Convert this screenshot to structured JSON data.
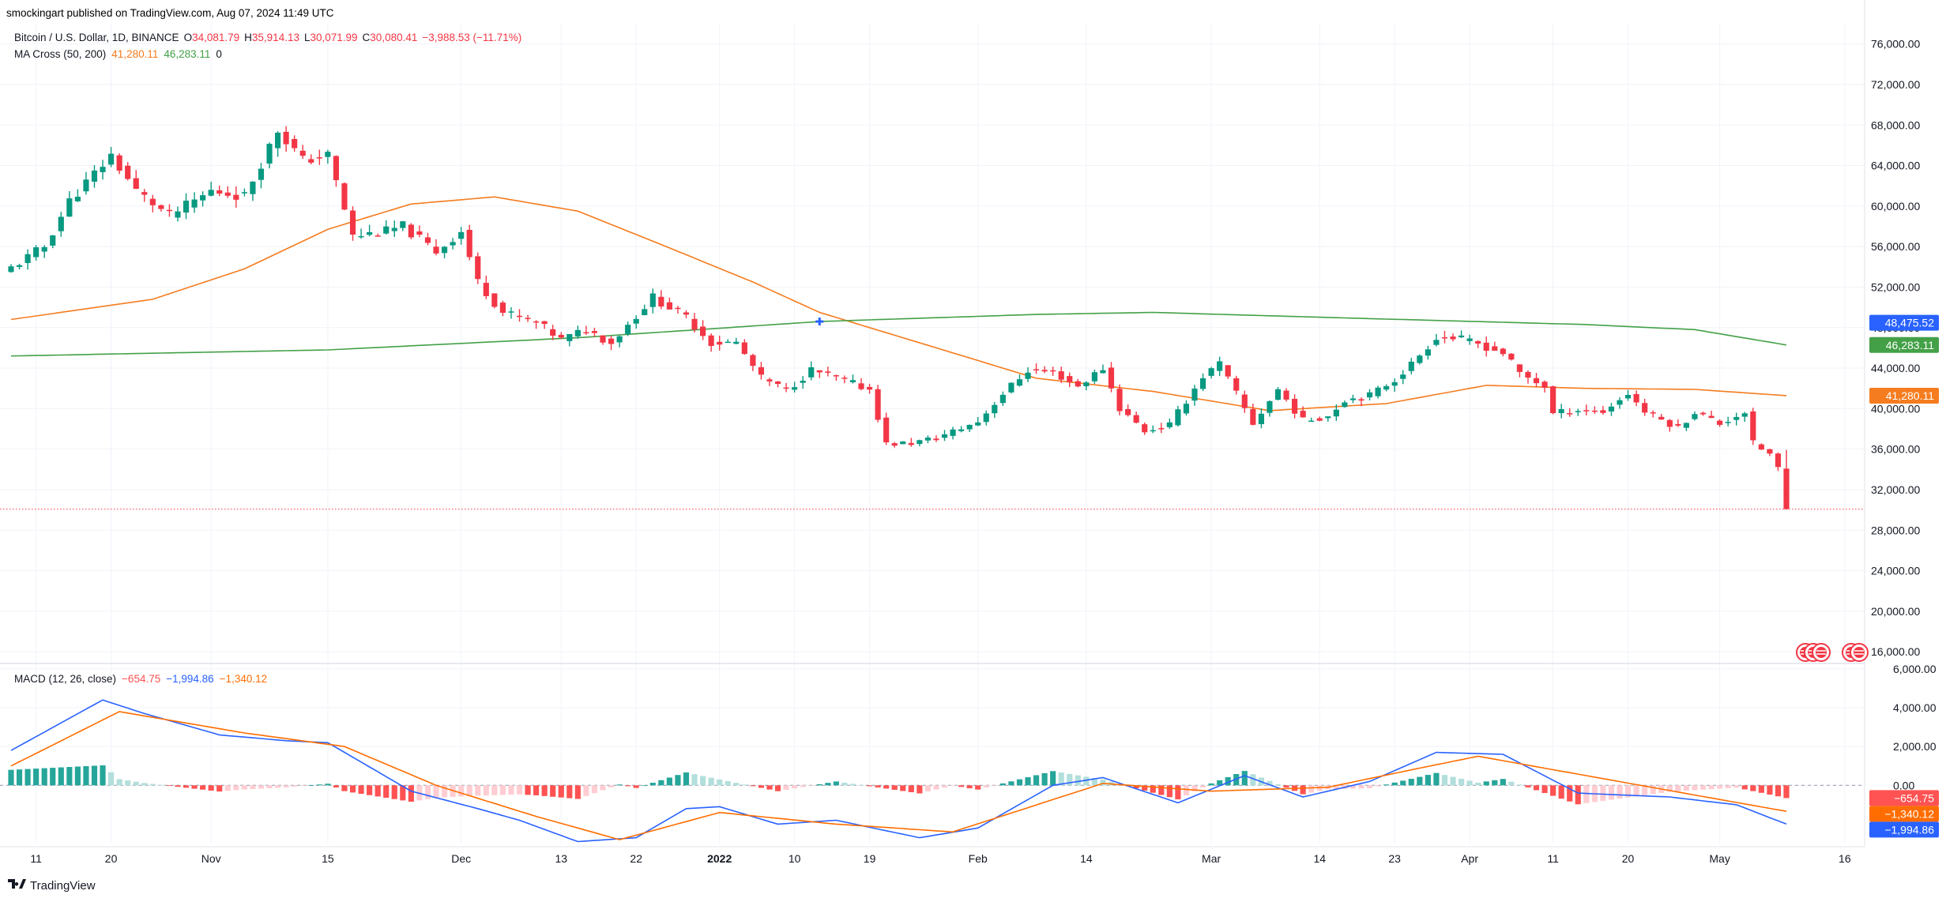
{
  "publisher_line": "smockingart published on TradingView.com, Aug 07, 2024 11:49 UTC",
  "footer_logo_text": "TradingView",
  "colors": {
    "up": "#089981",
    "down": "#f23645",
    "ma_fast": "#f57c1f",
    "ma_slow": "#43a047",
    "macd_line": "#2962ff",
    "signal_line": "#ff6d00",
    "hist_up_strong": "#26a69a",
    "hist_up_weak": "#b2dfdb",
    "hist_down_strong": "#ff5252",
    "hist_down_weak": "#ffcdd2",
    "grid": "#f0f3fa",
    "text": "#131722"
  },
  "legend": {
    "symbol": "Bitcoin / U.S. Dollar, 1D, BINANCE",
    "ohlc": [
      {
        "key": "O",
        "value": "34,081.79"
      },
      {
        "key": "H",
        "value": "35,914.13"
      },
      {
        "key": "L",
        "value": "30,071.99"
      },
      {
        "key": "C",
        "value": "30,080.41"
      }
    ],
    "change": "−3,988.53 (−11.71%)",
    "ma_label": "MA Cross (50, 200)",
    "ma_fast_value": "41,280.11",
    "ma_slow_value": "46,283.11",
    "ma_extra": "0",
    "macd_label": "MACD (12, 26, close)",
    "macd_hist": "−654.75",
    "macd_line": "−1,994.86",
    "macd_signal": "−1,340.12"
  },
  "price_badges": [
    {
      "value": 48475.52,
      "text": "48,475.52",
      "color": "#2962ff"
    },
    {
      "value": 46283.11,
      "text": "46,283.11",
      "color": "#43a047"
    },
    {
      "value": 41280.11,
      "text": "41,280.11",
      "color": "#f57c1f"
    }
  ],
  "macd_badges": [
    {
      "value": -654.75,
      "text": "−654.75",
      "color": "#ff5252"
    },
    {
      "value": -1340.12,
      "text": "−1,340.12",
      "color": "#ff6d00"
    },
    {
      "value": -1994.86,
      "text": "−1,994.86",
      "color": "#2962ff"
    }
  ],
  "chart_data": {
    "type": "candlestick",
    "title": "Bitcoin / U.S. Dollar, 1D, BINANCE",
    "start_date": "2021-10-08",
    "end_date": "2022-05-09",
    "price_ylim": [
      15000,
      78000
    ],
    "price_ticks": [
      16000,
      20000,
      24000,
      28000,
      32000,
      36000,
      40000,
      44000,
      48000,
      52000,
      56000,
      60000,
      64000,
      68000,
      72000,
      76000
    ],
    "price_tick_labels": [
      "16,000.00",
      "20,000.00",
      "24,000.00",
      "28,000.00",
      "32,000.00",
      "36,000.00",
      "40,000.00",
      "44,000.00",
      "48,000.00",
      "52,000.00",
      "56,000.00",
      "60,000.00",
      "64,000.00",
      "68,000.00",
      "72,000.00",
      "76,000.00"
    ],
    "last_price_line": 30080,
    "cross_marker": {
      "date": "2022-01-13",
      "value": 43000,
      "label": "MA Cross"
    },
    "x_ticks": [
      {
        "label": "11",
        "date": "2021-10-11",
        "bold": false
      },
      {
        "label": "20",
        "date": "2021-10-20",
        "bold": false
      },
      {
        "label": "Nov",
        "date": "2021-11-01",
        "bold": false
      },
      {
        "label": "15",
        "date": "2021-11-15",
        "bold": false
      },
      {
        "label": "Dec",
        "date": "2021-12-01",
        "bold": false
      },
      {
        "label": "13",
        "date": "2021-12-13",
        "bold": false
      },
      {
        "label": "22",
        "date": "2021-12-22",
        "bold": false
      },
      {
        "label": "2022",
        "date": "2022-01-01",
        "bold": true
      },
      {
        "label": "10",
        "date": "2022-01-10",
        "bold": false
      },
      {
        "label": "19",
        "date": "2022-01-19",
        "bold": false
      },
      {
        "label": "Feb",
        "date": "2022-02-01",
        "bold": false
      },
      {
        "label": "14",
        "date": "2022-02-14",
        "bold": false
      },
      {
        "label": "Mar",
        "date": "2022-03-01",
        "bold": false
      },
      {
        "label": "14",
        "date": "2022-03-14",
        "bold": false
      },
      {
        "label": "23",
        "date": "2022-03-23",
        "bold": false
      },
      {
        "label": "Apr",
        "date": "2022-04-01",
        "bold": false
      },
      {
        "label": "11",
        "date": "2022-04-11",
        "bold": false
      },
      {
        "label": "20",
        "date": "2022-04-20",
        "bold": false
      },
      {
        "label": "May",
        "date": "2022-05-01",
        "bold": false
      },
      {
        "label": "16",
        "date": "2022-05-16",
        "bold": false
      }
    ],
    "close_anchors": [
      {
        "date": "2021-10-08",
        "close": 53900
      },
      {
        "date": "2021-10-12",
        "close": 56000
      },
      {
        "date": "2021-10-15",
        "close": 60500
      },
      {
        "date": "2021-10-20",
        "close": 65000
      },
      {
        "date": "2021-10-23",
        "close": 61500
      },
      {
        "date": "2021-10-27",
        "close": 59000
      },
      {
        "date": "2021-11-01",
        "close": 61500
      },
      {
        "date": "2021-11-05",
        "close": 61000
      },
      {
        "date": "2021-11-09",
        "close": 67500
      },
      {
        "date": "2021-11-12",
        "close": 64500
      },
      {
        "date": "2021-11-15",
        "close": 65000
      },
      {
        "date": "2021-11-18",
        "close": 57000
      },
      {
        "date": "2021-11-22",
        "close": 57500
      },
      {
        "date": "2021-11-24",
        "close": 58000
      },
      {
        "date": "2021-11-28",
        "close": 55500
      },
      {
        "date": "2021-12-01",
        "close": 57500
      },
      {
        "date": "2021-12-03",
        "close": 52500
      },
      {
        "date": "2021-12-06",
        "close": 49500
      },
      {
        "date": "2021-12-10",
        "close": 48500
      },
      {
        "date": "2021-12-13",
        "close": 46800
      },
      {
        "date": "2021-12-16",
        "close": 47800
      },
      {
        "date": "2021-12-19",
        "close": 46500
      },
      {
        "date": "2021-12-24",
        "close": 51000
      },
      {
        "date": "2021-12-28",
        "close": 49000
      },
      {
        "date": "2021-12-31",
        "close": 46500
      },
      {
        "date": "2022-01-03",
        "close": 46500
      },
      {
        "date": "2022-01-06",
        "close": 43000
      },
      {
        "date": "2022-01-09",
        "close": 41800
      },
      {
        "date": "2022-01-12",
        "close": 43800
      },
      {
        "date": "2022-01-15",
        "close": 43000
      },
      {
        "date": "2022-01-19",
        "close": 41900
      },
      {
        "date": "2022-01-21",
        "close": 36500
      },
      {
        "date": "2022-01-24",
        "close": 36600
      },
      {
        "date": "2022-01-27",
        "close": 37100
      },
      {
        "date": "2022-02-01",
        "close": 38700
      },
      {
        "date": "2022-02-04",
        "close": 41500
      },
      {
        "date": "2022-02-07",
        "close": 43800
      },
      {
        "date": "2022-02-10",
        "close": 43600
      },
      {
        "date": "2022-02-13",
        "close": 42200
      },
      {
        "date": "2022-02-16",
        "close": 44000
      },
      {
        "date": "2022-02-18",
        "close": 40000
      },
      {
        "date": "2022-02-21",
        "close": 37800
      },
      {
        "date": "2022-02-24",
        "close": 38400
      },
      {
        "date": "2022-02-28",
        "close": 43200
      },
      {
        "date": "2022-03-02",
        "close": 44400
      },
      {
        "date": "2022-03-06",
        "close": 38500
      },
      {
        "date": "2022-03-09",
        "close": 41900
      },
      {
        "date": "2022-03-12",
        "close": 38800
      },
      {
        "date": "2022-03-15",
        "close": 39300
      },
      {
        "date": "2022-03-17",
        "close": 40900
      },
      {
        "date": "2022-03-20",
        "close": 41300
      },
      {
        "date": "2022-03-23",
        "close": 42900
      },
      {
        "date": "2022-03-25",
        "close": 44400
      },
      {
        "date": "2022-03-28",
        "close": 47100
      },
      {
        "date": "2022-03-30",
        "close": 47000
      },
      {
        "date": "2022-04-02",
        "close": 46400
      },
      {
        "date": "2022-04-05",
        "close": 45500
      },
      {
        "date": "2022-04-07",
        "close": 43500
      },
      {
        "date": "2022-04-10",
        "close": 42200
      },
      {
        "date": "2022-04-11",
        "close": 39500
      },
      {
        "date": "2022-04-14",
        "close": 39900
      },
      {
        "date": "2022-04-17",
        "close": 39700
      },
      {
        "date": "2022-04-20",
        "close": 41500
      },
      {
        "date": "2022-04-22",
        "close": 39700
      },
      {
        "date": "2022-04-26",
        "close": 38100
      },
      {
        "date": "2022-04-28",
        "close": 39700
      },
      {
        "date": "2022-05-01",
        "close": 38500
      },
      {
        "date": "2022-05-04",
        "close": 39700
      },
      {
        "date": "2022-05-05",
        "close": 36550
      },
      {
        "date": "2022-05-07",
        "close": 35500
      },
      {
        "date": "2022-05-08",
        "close": 34080
      },
      {
        "date": "2022-05-09",
        "close": 30080
      }
    ],
    "ma_series": [
      {
        "name": "MA 50",
        "color": "#f57c1f",
        "points": [
          {
            "date": "2021-10-08",
            "value": 48800
          },
          {
            "date": "2021-10-25",
            "value": 50800
          },
          {
            "date": "2021-11-05",
            "value": 53800
          },
          {
            "date": "2021-11-15",
            "value": 57700
          },
          {
            "date": "2021-11-25",
            "value": 60200
          },
          {
            "date": "2021-12-05",
            "value": 60900
          },
          {
            "date": "2021-12-15",
            "value": 59500
          },
          {
            "date": "2021-12-25",
            "value": 56200
          },
          {
            "date": "2022-01-05",
            "value": 52500
          },
          {
            "date": "2022-01-13",
            "value": 49500
          },
          {
            "date": "2022-01-25",
            "value": 46500
          },
          {
            "date": "2022-02-08",
            "value": 43000
          },
          {
            "date": "2022-02-22",
            "value": 41700
          },
          {
            "date": "2022-03-08",
            "value": 39800
          },
          {
            "date": "2022-03-22",
            "value": 40500
          },
          {
            "date": "2022-04-03",
            "value": 42300
          },
          {
            "date": "2022-04-15",
            "value": 42000
          },
          {
            "date": "2022-04-28",
            "value": 41900
          },
          {
            "date": "2022-05-09",
            "value": 41280
          }
        ]
      },
      {
        "name": "MA 200",
        "color": "#43a047",
        "points": [
          {
            "date": "2021-10-08",
            "value": 45200
          },
          {
            "date": "2021-11-15",
            "value": 45800
          },
          {
            "date": "2021-12-15",
            "value": 47000
          },
          {
            "date": "2022-01-13",
            "value": 48600
          },
          {
            "date": "2022-02-08",
            "value": 49300
          },
          {
            "date": "2022-02-22",
            "value": 49500
          },
          {
            "date": "2022-03-15",
            "value": 49000
          },
          {
            "date": "2022-04-15",
            "value": 48300
          },
          {
            "date": "2022-04-28",
            "value": 47800
          },
          {
            "date": "2022-05-09",
            "value": 46283
          }
        ]
      }
    ],
    "macd": {
      "ylim": [
        -3000,
        6200
      ],
      "ticks": [
        0,
        2000,
        4000,
        6000
      ],
      "tick_labels": [
        "0.00",
        "2,000.00",
        "4,000.00",
        "6,000.00"
      ],
      "macd_points": [
        {
          "date": "2021-10-08",
          "value": 1800
        },
        {
          "date": "2021-10-19",
          "value": 4400
        },
        {
          "date": "2021-10-24",
          "value": 3700
        },
        {
          "date": "2021-11-02",
          "value": 2600
        },
        {
          "date": "2021-11-10",
          "value": 2300
        },
        {
          "date": "2021-11-15",
          "value": 2200
        },
        {
          "date": "2021-11-25",
          "value": -300
        },
        {
          "date": "2021-12-03",
          "value": -1200
        },
        {
          "date": "2021-12-08",
          "value": -1800
        },
        {
          "date": "2021-12-15",
          "value": -2900
        },
        {
          "date": "2021-12-22",
          "value": -2700
        },
        {
          "date": "2021-12-28",
          "value": -1200
        },
        {
          "date": "2022-01-01",
          "value": -1100
        },
        {
          "date": "2022-01-08",
          "value": -2000
        },
        {
          "date": "2022-01-15",
          "value": -1800
        },
        {
          "date": "2022-01-25",
          "value": -2700
        },
        {
          "date": "2022-02-01",
          "value": -2200
        },
        {
          "date": "2022-02-10",
          "value": 0
        },
        {
          "date": "2022-02-16",
          "value": 400
        },
        {
          "date": "2022-02-25",
          "value": -900
        },
        {
          "date": "2022-03-05",
          "value": 500
        },
        {
          "date": "2022-03-12",
          "value": -600
        },
        {
          "date": "2022-03-20",
          "value": 200
        },
        {
          "date": "2022-03-28",
          "value": 1700
        },
        {
          "date": "2022-04-05",
          "value": 1600
        },
        {
          "date": "2022-04-14",
          "value": -400
        },
        {
          "date": "2022-04-25",
          "value": -600
        },
        {
          "date": "2022-05-03",
          "value": -1000
        },
        {
          "date": "2022-05-09",
          "value": -1995
        }
      ],
      "signal_points": [
        {
          "date": "2021-10-08",
          "value": 1000
        },
        {
          "date": "2021-10-21",
          "value": 3800
        },
        {
          "date": "2021-11-05",
          "value": 2700
        },
        {
          "date": "2021-11-17",
          "value": 2000
        },
        {
          "date": "2021-11-28",
          "value": 0
        },
        {
          "date": "2021-12-10",
          "value": -1600
        },
        {
          "date": "2021-12-20",
          "value": -2800
        },
        {
          "date": "2022-01-01",
          "value": -1400
        },
        {
          "date": "2022-01-15",
          "value": -2000
        },
        {
          "date": "2022-01-29",
          "value": -2400
        },
        {
          "date": "2022-02-16",
          "value": 100
        },
        {
          "date": "2022-03-01",
          "value": -300
        },
        {
          "date": "2022-03-15",
          "value": -100
        },
        {
          "date": "2022-03-25",
          "value": 800
        },
        {
          "date": "2022-04-02",
          "value": 1500
        },
        {
          "date": "2022-04-15",
          "value": 500
        },
        {
          "date": "2022-04-28",
          "value": -500
        },
        {
          "date": "2022-05-09",
          "value": -1340
        }
      ]
    }
  }
}
